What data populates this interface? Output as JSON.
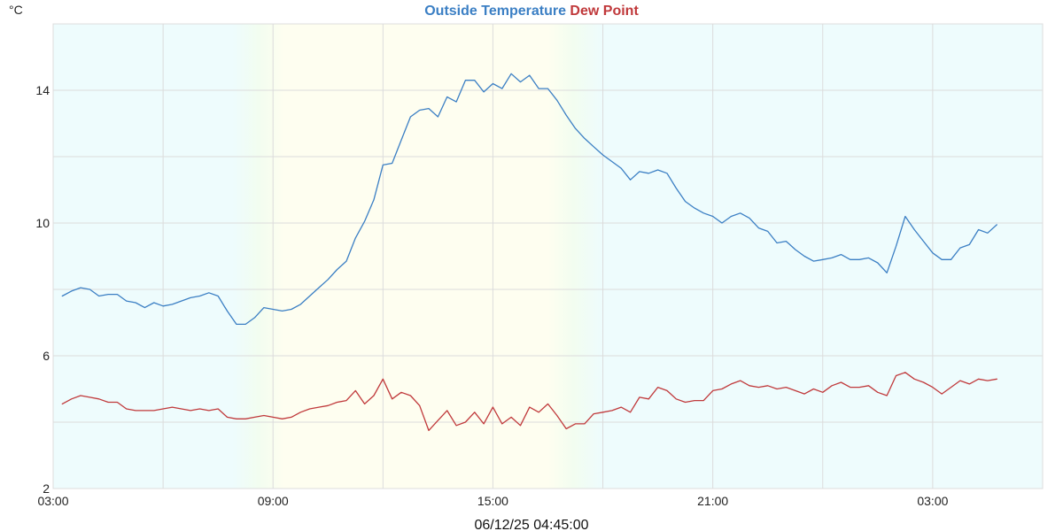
{
  "chart_data": {
    "type": "line",
    "title_parts": [
      {
        "text": "Outside Temperature",
        "color": "#3b7fc4"
      },
      {
        "text": " Dew Point",
        "color": "#c0393b"
      }
    ],
    "ylabel": "°C",
    "xlabel": "06/12/25 04:45:00",
    "x_range_hours": [
      3,
      30
    ],
    "ylim": [
      2,
      16
    ],
    "y_ticks": [
      2,
      6,
      10,
      14
    ],
    "y_gridlines": [
      2,
      4,
      6,
      8,
      10,
      12,
      14
    ],
    "x_ticks": [
      {
        "h": 3,
        "label": "03:00"
      },
      {
        "h": 9,
        "label": "09:00"
      },
      {
        "h": 15,
        "label": "15:00"
      },
      {
        "h": 21,
        "label": "21:00"
      },
      {
        "h": 27,
        "label": "03:00"
      }
    ],
    "x_gridlines_hours": [
      3,
      6,
      9,
      12,
      15,
      18,
      21,
      24,
      27
    ],
    "grid": true,
    "background_bands": [
      {
        "kind": "night",
        "color": "#eefcfd"
      },
      {
        "kind": "twilight",
        "color": "#f2fdf0"
      },
      {
        "kind": "day",
        "color": "#fefef0"
      }
    ],
    "series": [
      {
        "name": "Outside Temperature",
        "color": "#3b7fc4",
        "x": [
          3.25,
          3.5,
          3.75,
          4.0,
          4.25,
          4.5,
          4.75,
          5.0,
          5.25,
          5.5,
          5.75,
          6.0,
          6.25,
          6.5,
          6.75,
          7.0,
          7.25,
          7.5,
          7.75,
          8.0,
          8.25,
          8.5,
          8.75,
          9.0,
          9.25,
          9.5,
          9.75,
          10.0,
          10.25,
          10.5,
          10.75,
          11.0,
          11.25,
          11.5,
          11.75,
          12.0,
          12.25,
          12.5,
          12.75,
          13.0,
          13.25,
          13.5,
          13.75,
          14.0,
          14.25,
          14.5,
          14.75,
          15.0,
          15.25,
          15.5,
          15.75,
          16.0,
          16.25,
          16.5,
          16.75,
          17.0,
          17.25,
          17.5,
          17.75,
          18.0,
          18.25,
          18.5,
          18.75,
          19.0,
          19.25,
          19.5,
          19.75,
          20.0,
          20.25,
          20.5,
          20.75,
          21.0,
          21.25,
          21.5,
          21.75,
          22.0,
          22.25,
          22.5,
          22.75,
          23.0,
          23.25,
          23.5,
          23.75,
          24.0,
          24.25,
          24.5,
          24.75,
          25.0,
          25.25,
          25.5,
          25.75,
          26.0,
          26.25,
          26.5,
          26.75,
          27.0,
          27.25,
          27.5,
          27.75,
          28.0,
          28.25,
          28.5,
          28.75
        ],
        "values": [
          7.8,
          7.95,
          8.05,
          8.0,
          7.8,
          7.85,
          7.85,
          7.65,
          7.6,
          7.45,
          7.6,
          7.5,
          7.55,
          7.65,
          7.75,
          7.8,
          7.9,
          7.8,
          7.35,
          6.95,
          6.95,
          7.15,
          7.45,
          7.4,
          7.35,
          7.4,
          7.55,
          7.8,
          8.05,
          8.3,
          8.6,
          8.85,
          9.55,
          10.05,
          10.7,
          11.75,
          11.8,
          12.5,
          13.2,
          13.4,
          13.45,
          13.2,
          13.8,
          13.65,
          14.3,
          14.3,
          13.95,
          14.2,
          14.05,
          14.5,
          14.25,
          14.45,
          14.05,
          14.05,
          13.7,
          13.25,
          12.85,
          12.55,
          12.3,
          12.05,
          11.85,
          11.65,
          11.3,
          11.55,
          11.5,
          11.6,
          11.5,
          11.05,
          10.65,
          10.45,
          10.3,
          10.2,
          10.0,
          10.2,
          10.3,
          10.15,
          9.85,
          9.75,
          9.4,
          9.45,
          9.2,
          9.0,
          8.85,
          8.9,
          8.95,
          9.05,
          8.9,
          8.9,
          8.95,
          8.8,
          8.5,
          9.3,
          10.2,
          9.8,
          9.45,
          9.1,
          8.9,
          8.9,
          9.25,
          9.35,
          9.8,
          9.7,
          9.95
        ]
      },
      {
        "name": "Dew Point",
        "color": "#c0393b",
        "x": [
          3.25,
          3.5,
          3.75,
          4.0,
          4.25,
          4.5,
          4.75,
          5.0,
          5.25,
          5.5,
          5.75,
          6.0,
          6.25,
          6.5,
          6.75,
          7.0,
          7.25,
          7.5,
          7.75,
          8.0,
          8.25,
          8.5,
          8.75,
          9.0,
          9.25,
          9.5,
          9.75,
          10.0,
          10.25,
          10.5,
          10.75,
          11.0,
          11.25,
          11.5,
          11.75,
          12.0,
          12.25,
          12.5,
          12.75,
          13.0,
          13.25,
          13.5,
          13.75,
          14.0,
          14.25,
          14.5,
          14.75,
          15.0,
          15.25,
          15.5,
          15.75,
          16.0,
          16.25,
          16.5,
          16.75,
          17.0,
          17.25,
          17.5,
          17.75,
          18.0,
          18.25,
          18.5,
          18.75,
          19.0,
          19.25,
          19.5,
          19.75,
          20.0,
          20.25,
          20.5,
          20.75,
          21.0,
          21.25,
          21.5,
          21.75,
          22.0,
          22.25,
          22.5,
          22.75,
          23.0,
          23.25,
          23.5,
          23.75,
          24.0,
          24.25,
          24.5,
          24.75,
          25.0,
          25.25,
          25.5,
          25.75,
          26.0,
          26.25,
          26.5,
          26.75,
          27.0,
          27.25,
          27.5,
          27.75,
          28.0,
          28.25,
          28.5,
          28.75
        ],
        "values": [
          4.55,
          4.7,
          4.8,
          4.75,
          4.7,
          4.6,
          4.6,
          4.4,
          4.35,
          4.35,
          4.35,
          4.4,
          4.45,
          4.4,
          4.35,
          4.4,
          4.35,
          4.4,
          4.15,
          4.1,
          4.1,
          4.15,
          4.2,
          4.15,
          4.1,
          4.15,
          4.3,
          4.4,
          4.45,
          4.5,
          4.6,
          4.65,
          4.95,
          4.55,
          4.8,
          5.3,
          4.7,
          4.9,
          4.8,
          4.5,
          3.75,
          4.05,
          4.35,
          3.9,
          4.0,
          4.3,
          3.95,
          4.45,
          3.95,
          4.15,
          3.9,
          4.45,
          4.3,
          4.55,
          4.2,
          3.8,
          3.95,
          3.95,
          4.25,
          4.3,
          4.35,
          4.45,
          4.3,
          4.75,
          4.7,
          5.05,
          4.95,
          4.7,
          4.6,
          4.65,
          4.65,
          4.95,
          5.0,
          5.15,
          5.25,
          5.1,
          5.05,
          5.1,
          5.0,
          5.05,
          4.95,
          4.85,
          5.0,
          4.9,
          5.1,
          5.2,
          5.05,
          5.05,
          5.1,
          4.9,
          4.8,
          5.4,
          5.5,
          5.3,
          5.2,
          5.05,
          4.85,
          5.05,
          5.25,
          5.15,
          5.3,
          5.25,
          5.3
        ]
      }
    ]
  }
}
